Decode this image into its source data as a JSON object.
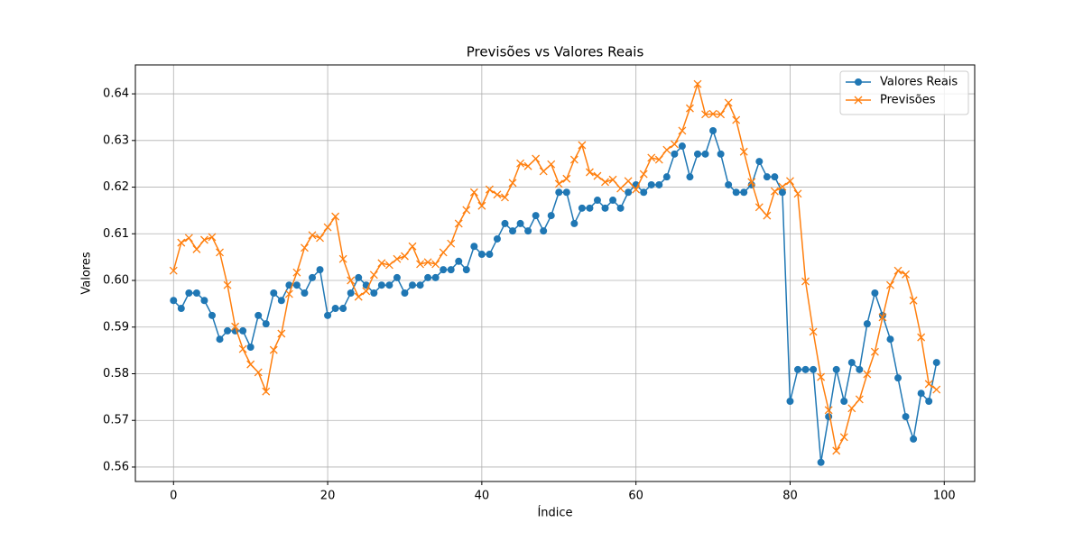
{
  "chart_data": {
    "type": "line",
    "title": "Previsões vs Valores Reais",
    "xlabel": "Índice",
    "ylabel": "Valores",
    "x": [
      0,
      1,
      2,
      3,
      4,
      5,
      6,
      7,
      8,
      9,
      10,
      11,
      12,
      13,
      14,
      15,
      16,
      17,
      18,
      19,
      20,
      21,
      22,
      23,
      24,
      25,
      26,
      27,
      28,
      29,
      30,
      31,
      32,
      33,
      34,
      35,
      36,
      37,
      38,
      39,
      40,
      41,
      42,
      43,
      44,
      45,
      46,
      47,
      48,
      49,
      50,
      51,
      52,
      53,
      54,
      55,
      56,
      57,
      58,
      59,
      60,
      61,
      62,
      63,
      64,
      65,
      66,
      67,
      68,
      69,
      70,
      71,
      72,
      73,
      74,
      75,
      76,
      77,
      78,
      79,
      80,
      81,
      82,
      83,
      84,
      85,
      86,
      87,
      88,
      89,
      90,
      91,
      92,
      93,
      94,
      95,
      96,
      97,
      98,
      99
    ],
    "series": [
      {
        "name": "Valores Reais",
        "color": "#1f77b4",
        "marker": "o",
        "values": [
          0.5957,
          0.594,
          0.5973,
          0.5973,
          0.5957,
          0.5925,
          0.5874,
          0.5892,
          0.5892,
          0.5892,
          0.5857,
          0.5925,
          0.5907,
          0.5973,
          0.5957,
          0.599,
          0.599,
          0.5973,
          0.6006,
          0.6023,
          0.5925,
          0.594,
          0.594,
          0.5973,
          0.6006,
          0.599,
          0.5973,
          0.599,
          0.599,
          0.6006,
          0.5973,
          0.599,
          0.599,
          0.6006,
          0.6006,
          0.6023,
          0.6023,
          0.6041,
          0.6023,
          0.6073,
          0.6056,
          0.6056,
          0.6089,
          0.6122,
          0.6106,
          0.6122,
          0.6106,
          0.6139,
          0.6106,
          0.6139,
          0.6189,
          0.6189,
          0.6122,
          0.6155,
          0.6155,
          0.6172,
          0.6155,
          0.6172,
          0.6155,
          0.6189,
          0.6205,
          0.6189,
          0.6205,
          0.6205,
          0.6222,
          0.6271,
          0.6288,
          0.6222,
          0.6271,
          0.6271,
          0.6321,
          0.6271,
          0.6205,
          0.6189,
          0.6189,
          0.6205,
          0.6255,
          0.6222,
          0.6222,
          0.6189,
          0.5741,
          0.5809,
          0.5809,
          0.5809,
          0.561,
          0.5708,
          0.5809,
          0.5741,
          0.5824,
          0.5809,
          0.5907,
          0.5973,
          0.5925,
          0.5874,
          0.5791,
          0.5708,
          0.566,
          0.5758,
          0.5741,
          0.5824
        ]
      },
      {
        "name": "Previsões",
        "color": "#ff7f0e",
        "marker": "x",
        "values": [
          0.6021,
          0.6081,
          0.6091,
          0.6067,
          0.6087,
          0.6093,
          0.606,
          0.599,
          0.5901,
          0.5853,
          0.582,
          0.5803,
          0.5762,
          0.5851,
          0.5886,
          0.5971,
          0.6017,
          0.607,
          0.6097,
          0.6091,
          0.6114,
          0.6137,
          0.6046,
          0.6,
          0.5965,
          0.5977,
          0.6012,
          0.6037,
          0.6033,
          0.6046,
          0.6052,
          0.6073,
          0.6035,
          0.6039,
          0.6035,
          0.606,
          0.6079,
          0.6122,
          0.6151,
          0.6189,
          0.616,
          0.6195,
          0.6184,
          0.6178,
          0.6209,
          0.6251,
          0.6245,
          0.6261,
          0.6234,
          0.6249,
          0.6207,
          0.6218,
          0.6259,
          0.629,
          0.6232,
          0.6224,
          0.6211,
          0.6216,
          0.6197,
          0.6213,
          0.6195,
          0.6228,
          0.6263,
          0.6259,
          0.628,
          0.6292,
          0.6321,
          0.6369,
          0.6421,
          0.6356,
          0.6357,
          0.6356,
          0.6381,
          0.6344,
          0.6276,
          0.6211,
          0.6157,
          0.6139,
          0.6191,
          0.6201,
          0.6213,
          0.6186,
          0.5998,
          0.589,
          0.5793,
          0.5722,
          0.5635,
          0.5664,
          0.5726,
          0.5745,
          0.5799,
          0.5847,
          0.5921,
          0.599,
          0.6021,
          0.6013,
          0.5957,
          0.5878,
          0.5778,
          0.5766
        ]
      }
    ],
    "xlim": [
      -4.95,
      103.95
    ],
    "xticks": [
      0,
      20,
      40,
      60,
      80,
      100
    ],
    "ylim": [
      0.5569,
      0.6462
    ],
    "yticks": [
      0.56,
      0.57,
      0.58,
      0.59,
      {
        "value": 0.6,
        "label": "0.60"
      },
      0.61,
      0.62,
      0.63,
      0.64
    ],
    "grid": true,
    "legend": "upper right"
  }
}
